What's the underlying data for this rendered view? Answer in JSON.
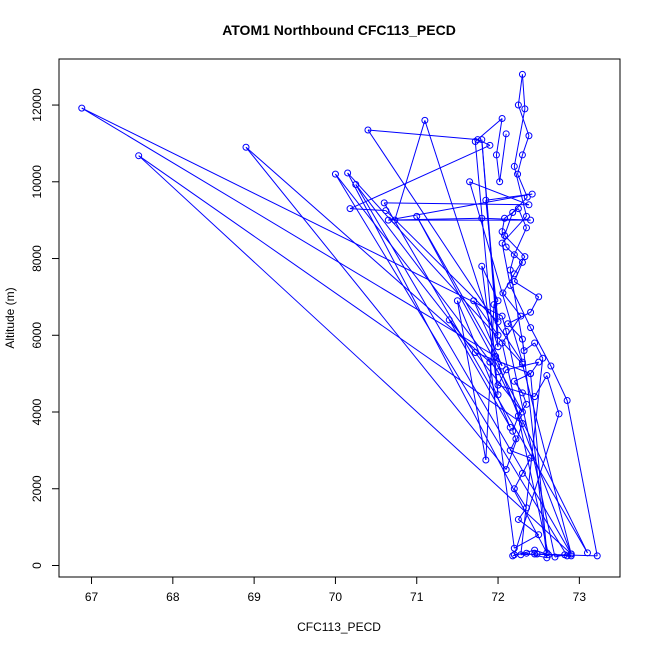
{
  "chart_data": {
    "type": "line",
    "title": "ATOM1 Northbound CFC113_PECD",
    "xlabel": "CFC113_PECD",
    "ylabel": "Altitude (m)",
    "xlim": [
      66.6,
      73.5
    ],
    "ylim": [
      -300,
      13200
    ],
    "x_ticks": [
      67,
      68,
      69,
      70,
      71,
      72,
      73
    ],
    "y_ticks": [
      0,
      2000,
      4000,
      6000,
      8000,
      10000,
      12000
    ],
    "grid": false,
    "legend": "none",
    "series_color": "#0000ff",
    "marker": "open-circle",
    "series": [
      {
        "name": "CFC113_PECD",
        "points": [
          [
            72.18,
            250
          ],
          [
            72.45,
            400
          ],
          [
            72.62,
            280
          ],
          [
            72.05,
            5800
          ],
          [
            72.28,
            6500
          ],
          [
            72.06,
            7100
          ],
          [
            72.2,
            7600
          ],
          [
            72.33,
            8050
          ],
          [
            72.08,
            8600
          ],
          [
            72.18,
            9200
          ],
          [
            72.36,
            9600
          ],
          [
            72.24,
            10200
          ],
          [
            72.3,
            10700
          ],
          [
            72.38,
            11200
          ],
          [
            72.25,
            12000
          ],
          [
            72.3,
            12800
          ],
          [
            72.33,
            11900
          ],
          [
            72.2,
            10400
          ],
          [
            72.35,
            9100
          ],
          [
            72.05,
            8400
          ],
          [
            72.15,
            7300
          ],
          [
            72.4,
            6200
          ],
          [
            72.65,
            5200
          ],
          [
            72.85,
            4300
          ],
          [
            73.22,
            250
          ],
          [
            72.45,
            300
          ],
          [
            72.9,
            250
          ],
          [
            72.82,
            280
          ],
          [
            72.7,
            220
          ],
          [
            72.1,
            6100
          ],
          [
            72.05,
            6500
          ],
          [
            66.88,
            11920
          ],
          [
            71.97,
            5450
          ],
          [
            72.9,
            300
          ],
          [
            67.58,
            10680
          ],
          [
            72.3,
            3700
          ],
          [
            72.1,
            2500
          ],
          [
            68.9,
            10900
          ],
          [
            71.9,
            5300
          ],
          [
            72.2,
            450
          ],
          [
            72.5,
            800
          ],
          [
            72.25,
            1200
          ],
          [
            72.35,
            1500
          ],
          [
            72.2,
            2000
          ],
          [
            72.3,
            2400
          ],
          [
            72.4,
            2800
          ],
          [
            72.15,
            3000
          ],
          [
            72.22,
            3300
          ],
          [
            72.18,
            3500
          ],
          [
            72.25,
            3900
          ],
          [
            72.35,
            4200
          ],
          [
            72.3,
            4500
          ],
          [
            72.2,
            4800
          ],
          [
            72.4,
            5000
          ],
          [
            72.5,
            5300
          ],
          [
            72.1,
            5100
          ],
          [
            72.0,
            4700
          ],
          [
            72.45,
            4400
          ],
          [
            72.6,
            4950
          ],
          [
            72.75,
            3950
          ],
          [
            72.2,
            280
          ],
          [
            72.35,
            320
          ],
          [
            72.6,
            200
          ],
          [
            72.3,
            5900
          ],
          [
            72.12,
            6300
          ],
          [
            72.4,
            6600
          ],
          [
            72.5,
            7000
          ],
          [
            72.2,
            7400
          ],
          [
            72.3,
            7900
          ],
          [
            72.1,
            8300
          ],
          [
            72.05,
            8700
          ],
          [
            72.08,
            9050
          ],
          [
            72.25,
            9300
          ],
          [
            72.35,
            8800
          ],
          [
            72.2,
            8100
          ],
          [
            72.15,
            7700
          ],
          [
            72.32,
            5600
          ],
          [
            72.45,
            5800
          ],
          [
            72.55,
            5400
          ],
          [
            72.28,
            280
          ],
          [
            72.48,
            300
          ],
          [
            72.85,
            250
          ],
          [
            70.0,
            10200
          ],
          [
            71.72,
            5550
          ],
          [
            72.4,
            5000
          ],
          [
            72.6,
            330
          ],
          [
            70.15,
            10230
          ],
          [
            72.3,
            5250
          ],
          [
            72.9,
            300
          ],
          [
            70.25,
            9930
          ],
          [
            72.0,
            5050
          ],
          [
            73.1,
            330
          ],
          [
            70.6,
            9450
          ],
          [
            72.38,
            9400
          ],
          [
            71.65,
            10000
          ],
          [
            72.3,
            5300
          ],
          [
            70.4,
            11350
          ],
          [
            71.75,
            11100
          ],
          [
            71.9,
            10950
          ],
          [
            70.18,
            9300
          ],
          [
            70.62,
            9250
          ],
          [
            72.0,
            6350
          ],
          [
            71.85,
            9520
          ],
          [
            72.42,
            9680
          ],
          [
            70.65,
            9000
          ],
          [
            71.8,
            9050
          ],
          [
            72.4,
            9000
          ],
          [
            70.73,
            9000
          ],
          [
            71.1,
            11600
          ],
          [
            72.0,
            5700
          ],
          [
            71.8,
            11100
          ],
          [
            72.0,
            6000
          ],
          [
            71.7,
            6900
          ],
          [
            72.05,
            5200
          ],
          [
            71.0,
            9100
          ],
          [
            72.3,
            4000
          ],
          [
            71.4,
            6400
          ],
          [
            72.15,
            3600
          ],
          [
            71.5,
            6900
          ],
          [
            71.85,
            2750
          ],
          [
            71.95,
            6800
          ],
          [
            72.0,
            6900
          ],
          [
            71.8,
            7800
          ],
          [
            72.0,
            4450
          ],
          [
            71.72,
            11050
          ],
          [
            72.05,
            11650
          ],
          [
            71.98,
            10700
          ],
          [
            72.02,
            10000
          ],
          [
            72.1,
            11250
          ]
        ]
      }
    ]
  }
}
